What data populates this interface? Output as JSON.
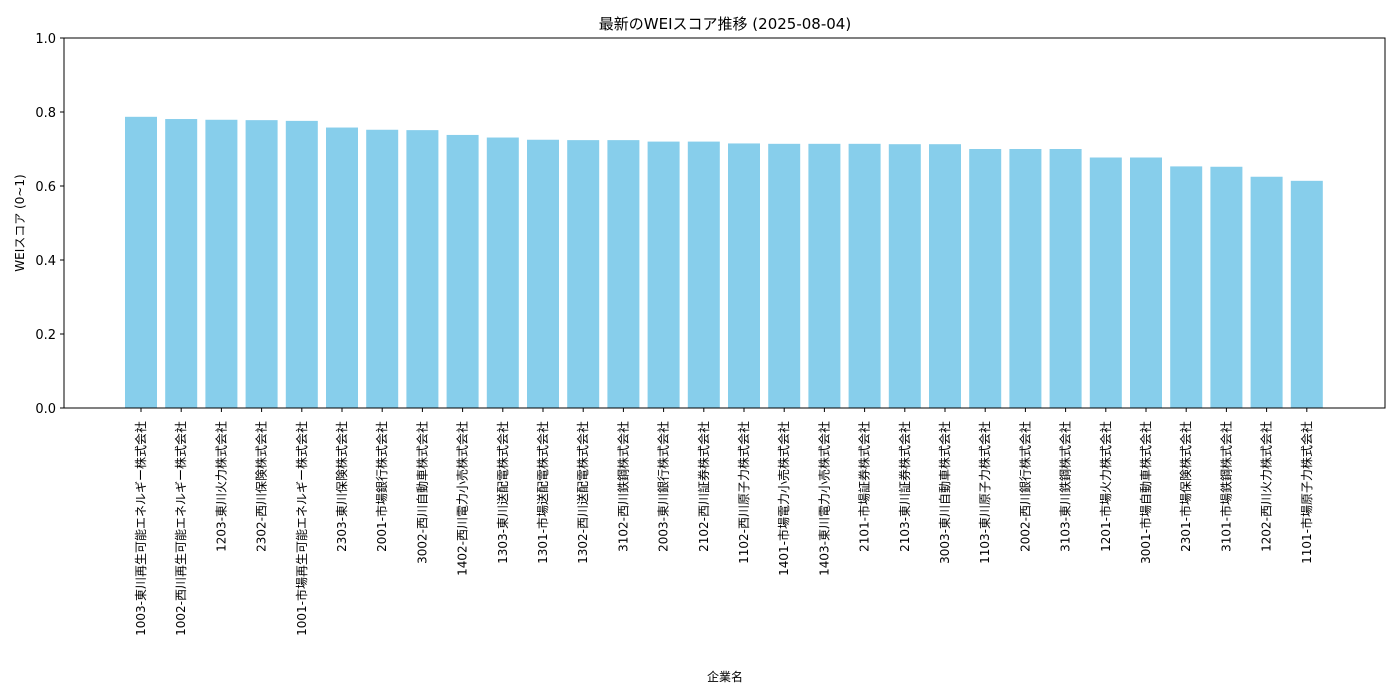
{
  "chart_data": {
    "type": "bar",
    "title": "最新のWEIスコア推移 (2025-08-04)",
    "xlabel": "企業名",
    "ylabel": "WEIスコア (0~1)",
    "ylim": [
      0,
      1.0
    ],
    "yticks": [
      "0.0",
      "0.2",
      "0.4",
      "0.6",
      "0.8",
      "1.0"
    ],
    "grid": false,
    "bar_color": "#87CEEB",
    "categories": [
      "1003-東川再生可能エネルギー株式会社",
      "1002-西川再生可能エネルギー株式会社",
      "1203-東川火力株式会社",
      "2302-西川保険株式会社",
      "1001-市場再生可能エネルギー株式会社",
      "2303-東川保険株式会社",
      "2001-市場銀行株式会社",
      "3002-西川自動車株式会社",
      "1402-西川電力小売株式会社",
      "1303-東川送配電株式会社",
      "1301-市場送配電株式会社",
      "1302-西川送配電株式会社",
      "3102-西川鉄鋼株式会社",
      "2003-東川銀行株式会社",
      "2102-西川証券株式会社",
      "1102-西川原子力株式会社",
      "1401-市場電力小売株式会社",
      "1403-東川電力小売株式会社",
      "2101-市場証券株式会社",
      "2103-東川証券株式会社",
      "3003-東川自動車株式会社",
      "1103-東川原子力株式会社",
      "2002-西川銀行株式会社",
      "3103-東川鉄鋼株式会社",
      "1201-市場火力株式会社",
      "3001-市場自動車株式会社",
      "2301-市場保険株式会社",
      "3101-市場鉄鋼株式会社",
      "1202-西川火力株式会社",
      "1101-市場原子力株式会社"
    ],
    "values": [
      0.787,
      0.781,
      0.779,
      0.778,
      0.776,
      0.758,
      0.752,
      0.751,
      0.738,
      0.731,
      0.725,
      0.724,
      0.724,
      0.72,
      0.72,
      0.715,
      0.714,
      0.714,
      0.714,
      0.713,
      0.713,
      0.7,
      0.7,
      0.7,
      0.677,
      0.677,
      0.653,
      0.652,
      0.625,
      0.614
    ]
  }
}
